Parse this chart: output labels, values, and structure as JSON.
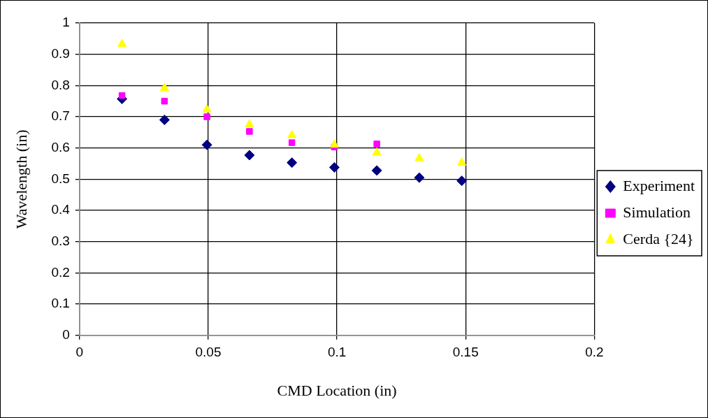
{
  "chart_data": {
    "type": "scatter",
    "xlabel": "CMD Location (in)",
    "ylabel": "Wavelength (in)",
    "xlim": [
      0,
      0.2
    ],
    "xticks": [
      0,
      0.05,
      0.1,
      0.15,
      0.2
    ],
    "ylim": [
      0,
      1
    ],
    "yticks": [
      0,
      0.1,
      0.2,
      0.3,
      0.4,
      0.5,
      0.6,
      0.7,
      0.8,
      0.9,
      1
    ],
    "grid": true,
    "legend": "right",
    "series": [
      {
        "name": "Experiment",
        "color": "#000080",
        "marker": "diamond",
        "x": [
          0.0165,
          0.033,
          0.0495,
          0.066,
          0.0825,
          0.099,
          0.1155,
          0.132,
          0.1485
        ],
        "values": [
          0.757,
          0.69,
          0.61,
          0.577,
          0.553,
          0.538,
          0.528,
          0.505,
          0.495
        ]
      },
      {
        "name": "Simulation",
        "color": "#ff00ff",
        "marker": "square",
        "x": [
          0.0165,
          0.033,
          0.0495,
          0.066,
          0.0825,
          0.099,
          0.1155
        ],
        "values": [
          0.768,
          0.75,
          0.7,
          0.653,
          0.617,
          0.603,
          0.613
        ]
      },
      {
        "name": "Cerda {24}",
        "color": "#ffff00",
        "marker": "triangle",
        "x": [
          0.0165,
          0.033,
          0.0495,
          0.066,
          0.0825,
          0.099,
          0.1155,
          0.132,
          0.1485
        ],
        "values": [
          0.933,
          0.792,
          0.723,
          0.675,
          0.641,
          0.61,
          0.585,
          0.567,
          0.553
        ]
      }
    ]
  }
}
